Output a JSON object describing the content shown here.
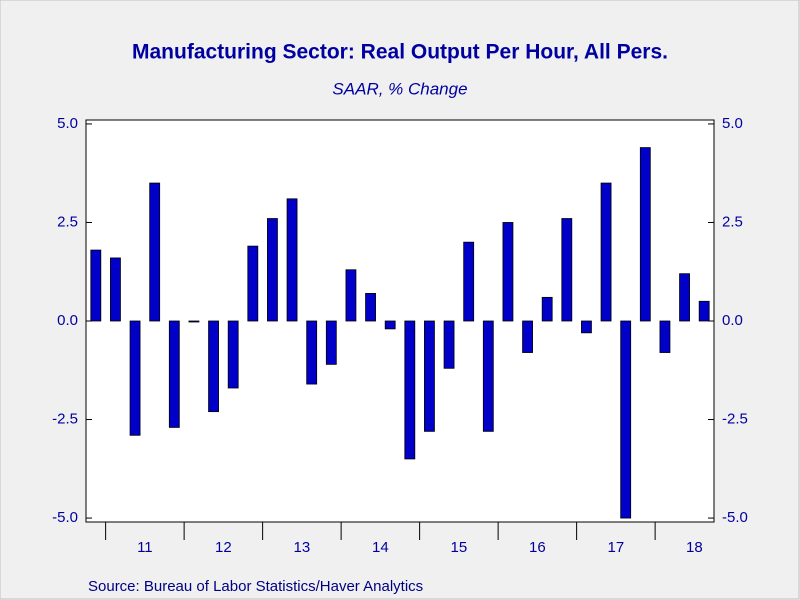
{
  "chart_data": {
    "type": "bar",
    "title": "Manufacturing Sector: Real Output Per Hour, All Pers.",
    "subtitle": "SAAR, % Change",
    "source": "Source:  Bureau of Labor Statistics/Haver Analytics",
    "categories": [
      null,
      null,
      "11",
      null,
      null,
      null,
      "12",
      null,
      null,
      null,
      "13",
      null,
      null,
      null,
      "14",
      null,
      null,
      null,
      "15",
      null,
      null,
      null,
      "16",
      null,
      null,
      null,
      "17",
      null,
      null,
      null,
      "18",
      null
    ],
    "values": [
      1.8,
      1.6,
      -2.9,
      3.5,
      -2.7,
      0.0,
      -2.3,
      -1.7,
      1.9,
      2.6,
      3.1,
      -1.6,
      -1.1,
      1.3,
      0.7,
      -0.2,
      -3.5,
      -2.8,
      -1.2,
      2.0,
      -2.8,
      2.5,
      -0.8,
      0.6,
      2.6,
      -0.3,
      3.5,
      -5.0,
      4.4,
      -0.8,
      1.2,
      0.5
    ],
    "color": "#0000c8",
    "ylim": [
      -5.1,
      5.1
    ],
    "yticks": [
      {
        "value": -5,
        "label": "-5.0"
      },
      {
        "value": -2.5,
        "label": "-2.5"
      },
      {
        "value": 0,
        "label": "0.0"
      },
      {
        "value": 2.5,
        "label": "2.5"
      },
      {
        "value": 5,
        "label": "5.0"
      }
    ],
    "y2lim": [
      -5.1,
      5.1
    ],
    "y2ticks": [
      {
        "value": -5,
        "label": "-5.0"
      },
      {
        "value": -2.5,
        "label": "-2.5"
      },
      {
        "value": 0,
        "label": "0.0"
      },
      {
        "value": 2.5,
        "label": "2.5"
      },
      {
        "value": 5,
        "label": "5.0"
      }
    ]
  }
}
